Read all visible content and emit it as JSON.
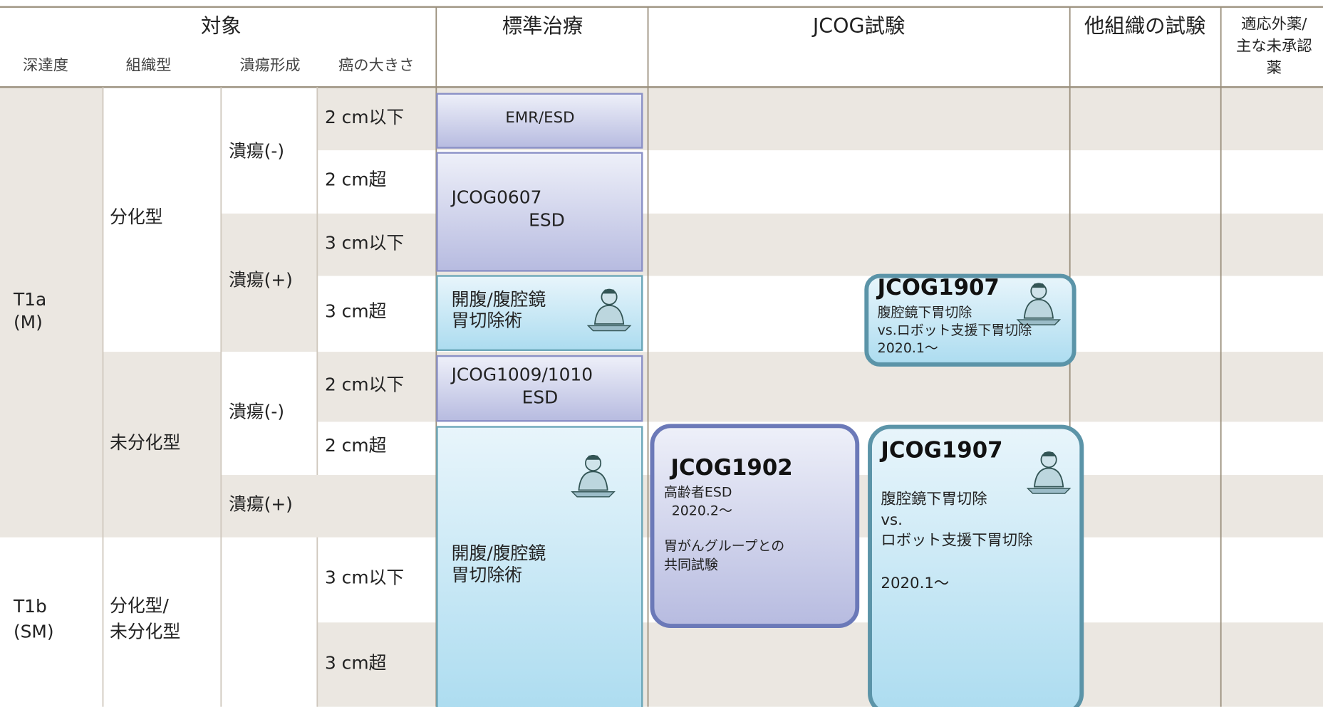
{
  "header": {
    "group": "対象",
    "sub": [
      "深達度",
      "組織型",
      "潰瘍形成",
      "癌の大きさ"
    ],
    "columns": [
      "標準治療",
      "JCOG試験",
      "他組織の試験"
    ],
    "last_column": [
      "適応外薬/",
      "主な未承認",
      "薬"
    ]
  },
  "rows": {
    "depth": [
      [
        "T1a",
        "(M)"
      ],
      [
        "T1b",
        "(SM)"
      ]
    ],
    "histology": [
      [
        "分化型"
      ],
      [
        "未分化型"
      ],
      [
        "分化型/",
        "未分化型"
      ]
    ],
    "ulcer": [
      "潰瘍(-)",
      "潰瘍(+)",
      "潰瘍(-)",
      "潰瘍(+)"
    ],
    "size": [
      "2 cm以下",
      "2 cm超",
      "3 cm以下",
      "3 cm超",
      "2 cm以下",
      "2 cm超",
      "3 cm以下",
      "3 cm超"
    ]
  },
  "standard": [
    [
      "EMR/ESD"
    ],
    [
      "JCOG0607",
      "ESD"
    ],
    [
      "開腹/腹腔鏡",
      "胃切除術"
    ],
    [
      "JCOG1009/1010",
      "ESD"
    ],
    [
      "開腹/腹腔鏡",
      "胃切除術"
    ]
  ],
  "jcog": [
    {
      "id": "JCOG1902",
      "detail": [
        "高齢者ESD",
        "2020.2～"
      ],
      "note": [
        "胃がんグループとの",
        "共同試験"
      ]
    },
    {
      "id": "JCOG1907",
      "detail": [
        "腹腔鏡下胃切除",
        "vs.ロボット支援下胃切除",
        "2020.1～"
      ]
    },
    {
      "id": "JCOG1907",
      "detail": [
        "腹腔鏡下胃切除",
        "vs.",
        "ロボット支援下胃切除"
      ],
      "date": "2020.1～"
    }
  ]
}
